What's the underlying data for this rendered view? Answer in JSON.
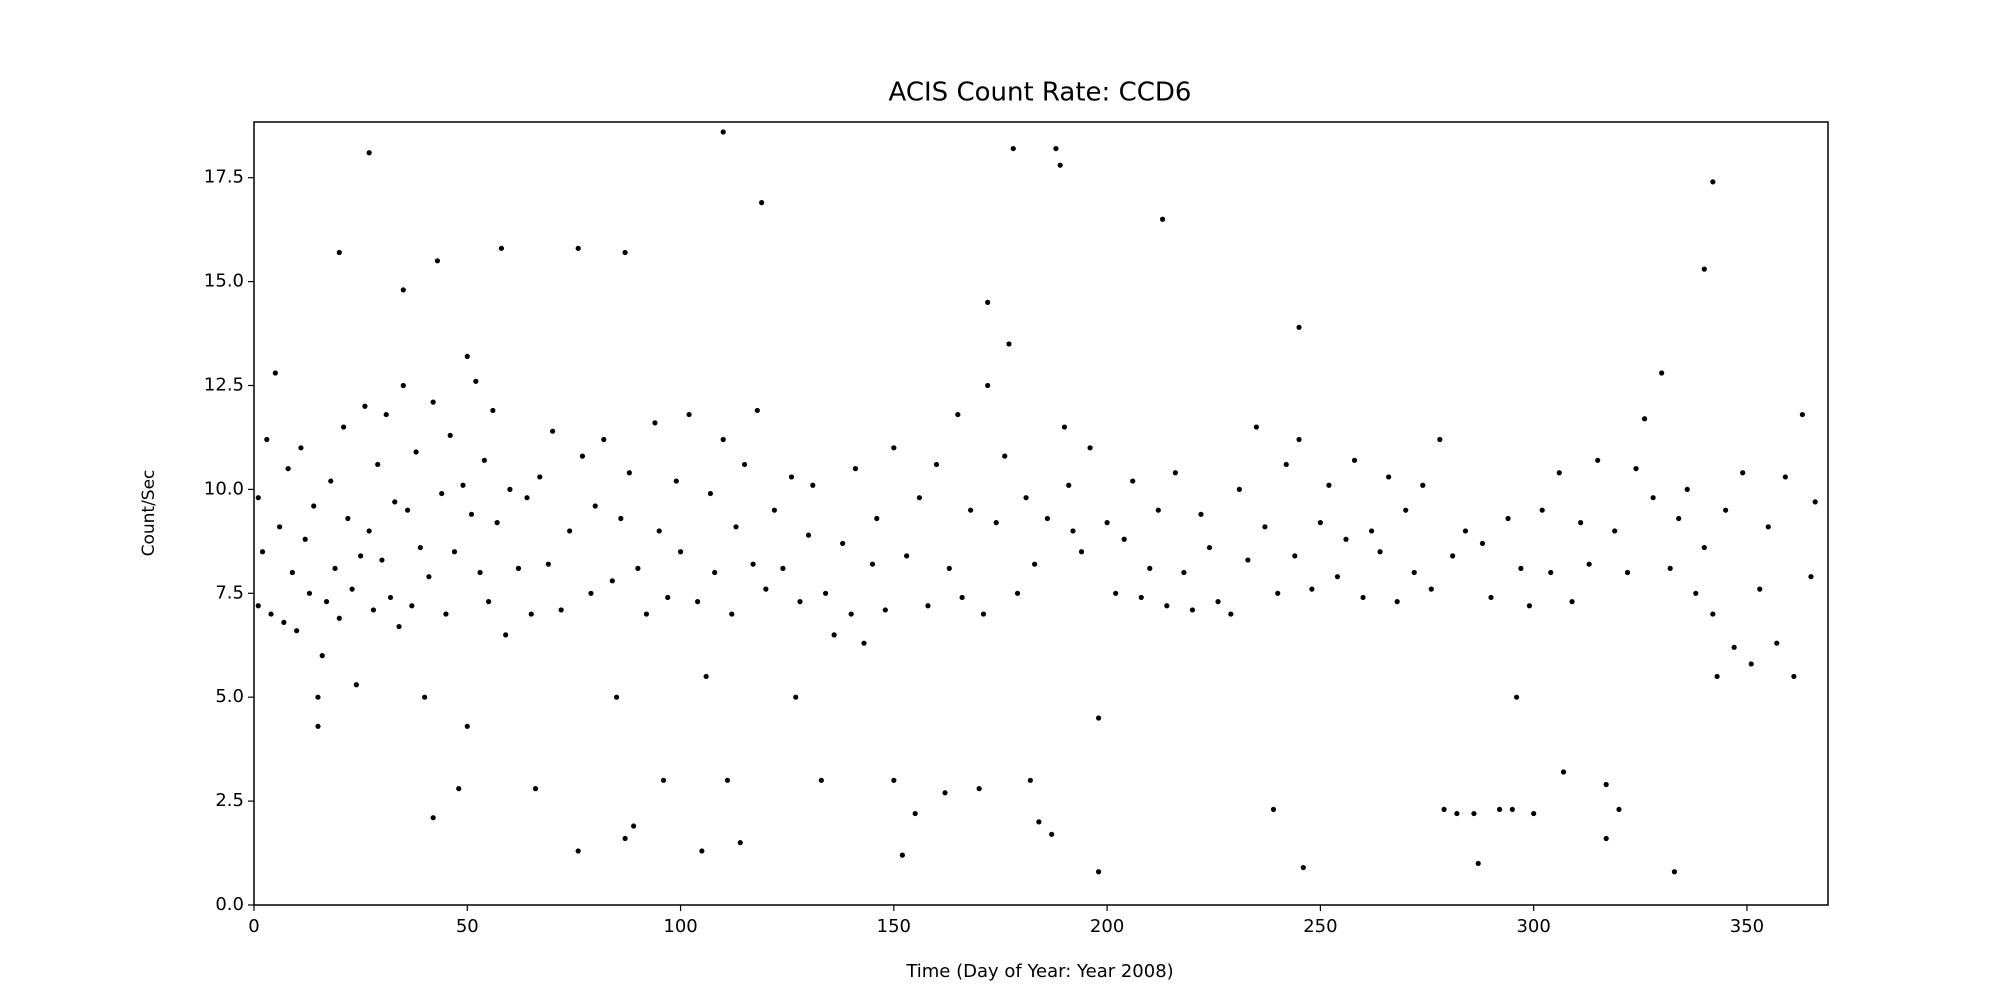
{
  "chart_data": {
    "type": "scatter",
    "title": "ACIS Count Rate: CCD6",
    "xlabel": "Time (Day of Year: Year 2008)",
    "ylabel": "Count/Sec",
    "color": "#000000",
    "xlim": [
      0,
      369
    ],
    "ylim": [
      0,
      18.84
    ],
    "xticks": [
      0,
      50,
      100,
      150,
      200,
      250,
      300,
      350
    ],
    "yticks": [
      {
        "value": 0,
        "label": "0.0"
      },
      2.5,
      {
        "value": 5,
        "label": "5.0"
      },
      7.5,
      {
        "value": 10,
        "label": "10.0"
      },
      12.5,
      {
        "value": 15,
        "label": "15.0"
      },
      17.5
    ],
    "x": [
      1,
      1,
      2,
      3,
      4,
      5,
      6,
      7,
      8,
      9,
      10,
      11,
      12,
      13,
      14,
      15,
      15,
      16,
      17,
      18,
      19,
      20,
      21,
      22,
      23,
      24,
      25,
      26,
      27,
      28,
      29,
      30,
      31,
      32,
      33,
      34,
      35,
      35,
      36,
      37,
      38,
      39,
      40,
      41,
      42,
      42,
      43,
      44,
      45,
      46,
      47,
      48,
      49,
      50,
      50,
      51,
      52,
      53,
      54,
      55,
      56,
      57,
      58,
      59,
      60,
      62,
      64,
      65,
      66,
      67,
      69,
      70,
      72,
      74,
      76,
      77,
      79,
      80,
      82,
      84,
      85,
      86,
      87,
      88,
      89,
      90,
      92,
      94,
      95,
      96,
      97,
      99,
      100,
      102,
      104,
      105,
      106,
      107,
      108,
      110,
      111,
      112,
      113,
      114,
      115,
      117,
      118,
      120,
      122,
      124,
      126,
      127,
      128,
      130,
      131,
      133,
      134,
      136,
      138,
      140,
      141,
      143,
      145,
      146,
      148,
      150,
      150,
      152,
      153,
      155,
      156,
      158,
      160,
      162,
      163,
      165,
      166,
      168,
      170,
      171,
      172,
      172,
      174,
      176,
      177,
      179,
      181,
      182,
      183,
      184,
      186,
      187,
      188,
      189,
      190,
      191,
      192,
      194,
      196,
      198,
      198,
      200,
      202,
      204,
      206,
      208,
      210,
      212,
      214,
      216,
      218,
      220,
      222,
      224,
      226,
      229,
      231,
      233,
      235,
      237,
      239,
      240,
      242,
      244,
      245,
      246,
      248,
      250,
      252,
      254,
      256,
      258,
      260,
      262,
      264,
      266,
      268,
      270,
      272,
      274,
      276,
      278,
      279,
      281,
      282,
      284,
      286,
      287,
      288,
      290,
      292,
      294,
      295,
      296,
      297,
      299,
      300,
      302,
      304,
      306,
      307,
      309,
      311,
      313,
      315,
      317,
      317,
      319,
      320,
      322,
      324,
      326,
      328,
      330,
      332,
      333,
      334,
      336,
      338,
      340,
      342,
      343,
      345,
      347,
      349,
      351,
      353,
      355,
      357,
      359,
      361,
      363,
      365,
      366,
      27,
      110,
      119,
      178,
      213,
      342,
      340,
      20,
      76,
      87,
      245
    ],
    "values": [
      7.2,
      9.8,
      8.5,
      11.2,
      7.0,
      12.8,
      9.1,
      6.8,
      10.5,
      8.0,
      6.6,
      11.0,
      8.8,
      7.5,
      9.6,
      5.0,
      4.3,
      6.0,
      7.3,
      10.2,
      8.1,
      6.9,
      11.5,
      9.3,
      7.6,
      5.3,
      8.4,
      12.0,
      9.0,
      7.1,
      10.6,
      8.3,
      11.8,
      7.4,
      9.7,
      6.7,
      14.8,
      12.5,
      9.5,
      7.2,
      10.9,
      8.6,
      5.0,
      7.9,
      12.1,
      2.1,
      15.5,
      9.9,
      7.0,
      11.3,
      8.5,
      2.8,
      10.1,
      13.2,
      4.3,
      9.4,
      12.6,
      8.0,
      10.7,
      7.3,
      11.9,
      9.2,
      15.8,
      6.5,
      10.0,
      8.1,
      9.8,
      7.0,
      2.8,
      10.3,
      8.2,
      11.4,
      7.1,
      9.0,
      1.3,
      10.8,
      7.5,
      9.6,
      11.2,
      7.8,
      5.0,
      9.3,
      1.6,
      10.4,
      1.9,
      8.1,
      7.0,
      11.6,
      9.0,
      3.0,
      7.4,
      10.2,
      8.5,
      11.8,
      7.3,
      1.3,
      5.5,
      9.9,
      8.0,
      11.2,
      3.0,
      7.0,
      9.1,
      1.5,
      10.6,
      8.2,
      11.9,
      7.6,
      9.5,
      8.1,
      10.3,
      5.0,
      7.3,
      8.9,
      10.1,
      3.0,
      7.5,
      6.5,
      8.7,
      7.0,
      10.5,
      6.3,
      8.2,
      9.3,
      7.1,
      11.0,
      3.0,
      1.2,
      8.4,
      2.2,
      9.8,
      7.2,
      10.6,
      2.7,
      8.1,
      11.8,
      7.4,
      9.5,
      2.8,
      7.0,
      14.5,
      12.5,
      9.2,
      10.8,
      13.5,
      7.5,
      9.8,
      3.0,
      8.2,
      2.0,
      9.3,
      1.7,
      18.2,
      17.8,
      11.5,
      10.1,
      9.0,
      8.5,
      11.0,
      4.5,
      0.8,
      9.2,
      7.5,
      8.8,
      10.2,
      7.4,
      8.1,
      9.5,
      7.2,
      10.4,
      8.0,
      7.1,
      9.4,
      8.6,
      7.3,
      7.0,
      10.0,
      8.3,
      11.5,
      9.1,
      2.3,
      7.5,
      10.6,
      8.4,
      11.2,
      0.9,
      7.6,
      9.2,
      10.1,
      7.9,
      8.8,
      10.7,
      7.4,
      9.0,
      8.5,
      10.3,
      7.3,
      9.5,
      8.0,
      10.1,
      7.6,
      11.2,
      2.3,
      8.4,
      2.2,
      9.0,
      2.2,
      1.0,
      8.7,
      7.4,
      2.3,
      9.3,
      2.3,
      5.0,
      8.1,
      7.2,
      2.2,
      9.5,
      8.0,
      10.4,
      3.2,
      7.3,
      9.2,
      8.2,
      10.7,
      2.9,
      1.6,
      9.0,
      2.3,
      8.0,
      10.5,
      11.7,
      9.8,
      12.8,
      8.1,
      0.8,
      9.3,
      10.0,
      7.5,
      8.6,
      7.0,
      5.5,
      9.5,
      6.2,
      10.4,
      5.8,
      7.6,
      9.1,
      6.3,
      10.3,
      5.5,
      11.8,
      7.9,
      9.7,
      18.1,
      18.6,
      16.9,
      18.2,
      16.5,
      17.4,
      15.3,
      15.7,
      15.8,
      15.7,
      13.9
    ]
  }
}
